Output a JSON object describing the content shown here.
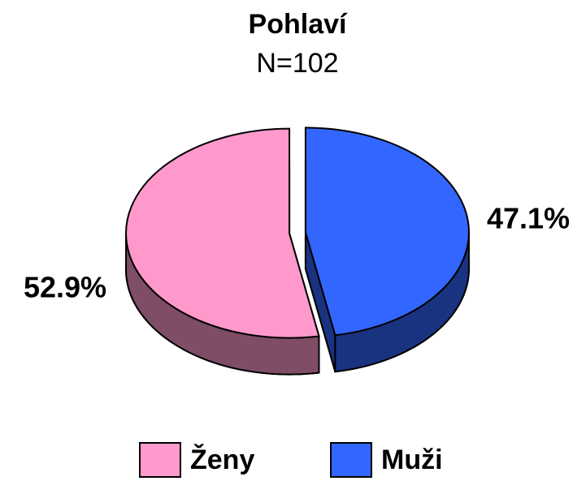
{
  "chart_data": {
    "type": "pie",
    "title": "Pohlaví",
    "subtitle": "N=102",
    "categories": [
      "Ženy",
      "Muži"
    ],
    "values": [
      52.9,
      47.1
    ],
    "value_labels": [
      "52.9%",
      "47.1%"
    ],
    "colors": [
      "#ff99cc",
      "#3366ff"
    ]
  }
}
